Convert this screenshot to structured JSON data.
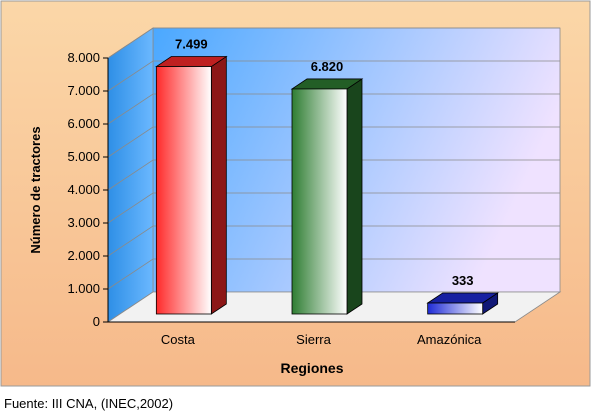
{
  "source_note": "Fuente: III CNA, (INEC,2002)",
  "colors": {
    "outer_top": "#fbd7a8",
    "outer_bottom": "#f6b98a",
    "plot_left": "#4aa8ff",
    "plot_right": "#efe2ff",
    "costa": "#ff2a2a",
    "sierra": "#2e7d32",
    "amazonica": "#1f2bd6"
  },
  "chart_data": {
    "type": "bar",
    "categories": [
      "Costa",
      "Sierra",
      "Amazónica"
    ],
    "values": [
      7499,
      6820,
      333
    ],
    "value_labels": [
      "7.499",
      "6.820",
      "333"
    ],
    "xlabel": "Regiones",
    "ylabel": "Número de tractores",
    "ylim": [
      0,
      8000
    ],
    "yticks": [
      0,
      1000,
      2000,
      3000,
      4000,
      5000,
      6000,
      7000,
      8000
    ],
    "ytick_labels": [
      "0",
      "1.000",
      "2.000",
      "3.000",
      "4.000",
      "5.000",
      "6.000",
      "7.000",
      "8.000"
    ],
    "grid": true,
    "style": "3d"
  }
}
